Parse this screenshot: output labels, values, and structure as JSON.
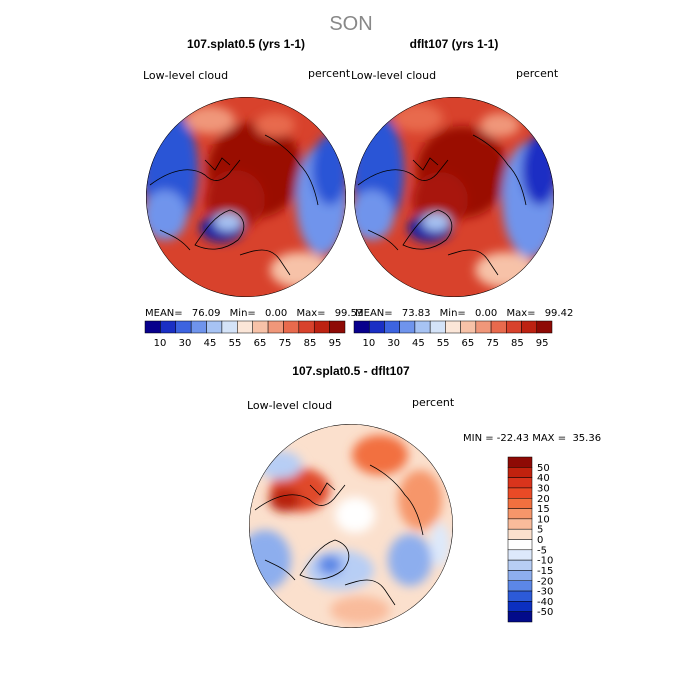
{
  "chart_data": [
    {
      "type": "heatmap",
      "figure_title": "SON",
      "title": "107.splat0.5 (yrs 1-1)",
      "variable": "Low-level cloud",
      "units": "percent",
      "projection": "north-polar-stereographic",
      "stats": {
        "mean_label": "MEAN=",
        "mean": "76.09",
        "min_label": "Min=",
        "min": "0.00",
        "max_label": "Max=",
        "max": "99.53"
      },
      "colorbar": {
        "orientation": "horizontal",
        "ticks": [
          "10",
          "30",
          "45",
          "55",
          "65",
          "75",
          "85",
          "95"
        ],
        "colors": [
          "#08008c",
          "#1a2fc4",
          "#3d64e0",
          "#6f94ec",
          "#a7c3f3",
          "#d4e3f8",
          "#fbe6d8",
          "#f7c2a8",
          "#f0977a",
          "#e86a4d",
          "#d8422c",
          "#bd2212",
          "#8e0a05"
        ]
      }
    },
    {
      "type": "heatmap",
      "title": "dflt107 (yrs 1-1)",
      "variable": "Low-level cloud",
      "units": "percent",
      "projection": "north-polar-stereographic",
      "stats": {
        "mean_label": "MEAN=",
        "mean": "73.83",
        "min_label": "Min=",
        "min": "0.00",
        "max_label": "Max=",
        "max": "99.42"
      },
      "colorbar": {
        "orientation": "horizontal",
        "ticks": [
          "10",
          "30",
          "45",
          "55",
          "65",
          "75",
          "85",
          "95"
        ],
        "colors": [
          "#08008c",
          "#1a2fc4",
          "#3d64e0",
          "#6f94ec",
          "#a7c3f3",
          "#d4e3f8",
          "#fbe6d8",
          "#f7c2a8",
          "#f0977a",
          "#e86a4d",
          "#d8422c",
          "#bd2212",
          "#8e0a05"
        ]
      }
    },
    {
      "type": "heatmap",
      "title": "107.splat0.5 - dflt107",
      "variable": "Low-level cloud",
      "units": "percent",
      "projection": "north-polar-stereographic",
      "stats_text": "MIN = -22.43 MAX =  35.36",
      "colorbar": {
        "orientation": "vertical",
        "ticks": [
          "50",
          "40",
          "30",
          "20",
          "15",
          "10",
          "5",
          "0",
          "-5",
          "-10",
          "-15",
          "-20",
          "-30",
          "-40",
          "-50"
        ],
        "colors": [
          "#8e0a05",
          "#c1220e",
          "#d9341c",
          "#ea4a26",
          "#f2703f",
          "#f6966a",
          "#f9bb9b",
          "#fbe0cd",
          "#ffffff",
          "#dde9fb",
          "#b7cef5",
          "#8daeee",
          "#5c87e6",
          "#2c5ad8",
          "#0b2fc0",
          "#020b8a"
        ]
      }
    }
  ]
}
